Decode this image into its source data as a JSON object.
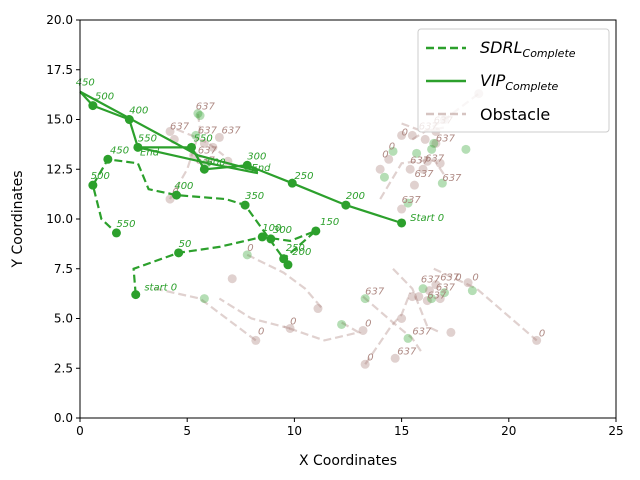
{
  "chart_data": {
    "type": "line",
    "xlabel": "X Coordinates",
    "ylabel": "Y Coordinates",
    "xlim": [
      0,
      25
    ],
    "ylim": [
      0,
      20
    ],
    "xticks": [
      "0",
      "5",
      "10",
      "15",
      "20",
      "25"
    ],
    "yticks": [
      "0.0",
      "2.5",
      "5.0",
      "7.5",
      "10.0",
      "12.5",
      "15.0",
      "17.5",
      "20.0"
    ],
    "grid": false,
    "legend": "top-right",
    "colors": {
      "agent": "#2ca02c",
      "obstacle": "#a57c76"
    },
    "series": [
      {
        "name": "SDRL",
        "name_sub": "Complete",
        "style": "dashed",
        "points": [
          [
            2.6,
            6.2
          ],
          [
            2.5,
            7.5
          ],
          [
            4.6,
            8.3
          ],
          [
            6.5,
            8.6
          ],
          [
            8.5,
            9.1
          ],
          [
            9.8,
            8.9
          ],
          [
            11.0,
            9.4
          ],
          [
            9.5,
            8.0
          ],
          [
            9.7,
            7.7
          ],
          [
            7.7,
            10.7
          ],
          [
            6.8,
            11.0
          ],
          [
            4.5,
            11.2
          ],
          [
            3.2,
            11.5
          ],
          [
            2.7,
            12.8
          ],
          [
            1.3,
            13.0
          ],
          [
            0.6,
            11.7
          ],
          [
            1.0,
            10.0
          ],
          [
            1.7,
            9.3
          ]
        ],
        "markers": [
          [
            2.6,
            6.2
          ],
          [
            4.6,
            8.3
          ],
          [
            8.5,
            9.1
          ],
          [
            8.9,
            9.0
          ],
          [
            11.0,
            9.4
          ],
          [
            9.5,
            8.0
          ],
          [
            9.7,
            7.7
          ],
          [
            7.7,
            10.7
          ],
          [
            4.5,
            11.2
          ],
          [
            1.3,
            13.0
          ],
          [
            0.6,
            11.7
          ],
          [
            1.7,
            9.3
          ]
        ],
        "labels": [
          {
            "x": 3.0,
            "y": 6.4,
            "text": "start 0"
          },
          {
            "x": 4.6,
            "y": 8.6,
            "text": "50"
          },
          {
            "x": 8.5,
            "y": 9.4,
            "text": "100"
          },
          {
            "x": 11.2,
            "y": 9.7,
            "text": "150"
          },
          {
            "x": 9.9,
            "y": 8.2,
            "text": "200"
          },
          {
            "x": 9.6,
            "y": 8.4,
            "text": "250"
          },
          {
            "x": 9.0,
            "y": 9.3,
            "text": "300"
          },
          {
            "x": 7.7,
            "y": 11.0,
            "text": "350"
          },
          {
            "x": 4.4,
            "y": 11.5,
            "text": "400"
          },
          {
            "x": 1.4,
            "y": 13.3,
            "text": "450"
          },
          {
            "x": 0.5,
            "y": 12.0,
            "text": "500"
          },
          {
            "x": 1.7,
            "y": 9.6,
            "text": "550"
          },
          {
            "x": 2.8,
            "y": 13.2,
            "text": "End"
          }
        ]
      },
      {
        "name": "VIP",
        "name_sub": "Complete",
        "style": "solid",
        "points": [
          [
            15.0,
            9.8
          ],
          [
            12.4,
            10.7
          ],
          [
            9.9,
            11.8
          ],
          [
            7.8,
            12.7
          ],
          [
            5.8,
            12.5
          ],
          [
            5.2,
            13.6
          ],
          [
            2.7,
            13.6
          ],
          [
            2.3,
            15.0
          ],
          [
            0.6,
            15.7
          ],
          [
            0.0,
            16.4
          ]
        ],
        "markers": [
          [
            15.0,
            9.8
          ],
          [
            12.4,
            10.7
          ],
          [
            9.9,
            11.8
          ],
          [
            7.8,
            12.7
          ],
          [
            5.8,
            12.5
          ],
          [
            5.2,
            13.6
          ],
          [
            2.7,
            13.6
          ],
          [
            2.3,
            15.0
          ],
          [
            0.6,
            15.7
          ]
        ],
        "extra_segments": [
          [
            [
              0.0,
              16.4
            ],
            [
              5.5,
              13.2
            ],
            [
              8.3,
              12.4
            ]
          ],
          [
            [
              2.7,
              13.6
            ],
            [
              6.0,
              12.8
            ],
            [
              8.3,
              12.3
            ]
          ]
        ],
        "labels": [
          {
            "x": 15.4,
            "y": 9.9,
            "text": "Start 0"
          },
          {
            "x": 12.4,
            "y": 11.0,
            "text": "200"
          },
          {
            "x": 10.0,
            "y": 12.0,
            "text": "250"
          },
          {
            "x": 7.8,
            "y": 13.0,
            "text": "300"
          },
          {
            "x": 8.0,
            "y": 12.4,
            "text": "End"
          },
          {
            "x": 5.9,
            "y": 12.7,
            "text": "600"
          },
          {
            "x": 5.3,
            "y": 13.9,
            "text": "550"
          },
          {
            "x": 2.7,
            "y": 13.9,
            "text": "550"
          },
          {
            "x": 2.3,
            "y": 15.3,
            "text": "400"
          },
          {
            "x": 0.7,
            "y": 16.0,
            "text": "500"
          },
          {
            "x": -0.2,
            "y": 16.7,
            "text": "450"
          }
        ]
      },
      {
        "name": "Obstacle",
        "style": "dashed",
        "segments": [
          [
            [
              8.2,
              3.9
            ],
            [
              5.6,
              6.0
            ],
            [
              3.5,
              6.5
            ]
          ],
          [
            [
              9.8,
              4.5
            ],
            [
              8.0,
              5.0
            ],
            [
              6.5,
              6.0
            ]
          ],
          [
            [
              7.8,
              8.2
            ],
            [
              9.5,
              7.3
            ],
            [
              10.5,
              6.5
            ],
            [
              11.3,
              5.5
            ]
          ],
          [
            [
              12.2,
              4.8
            ],
            [
              13.0,
              4.3
            ],
            [
              11.4,
              3.9
            ],
            [
              9.5,
              4.6
            ]
          ],
          [
            [
              13.3,
              2.7
            ],
            [
              14.5,
              4.6
            ],
            [
              15.0,
              5.2
            ],
            [
              15.4,
              6.3
            ]
          ],
          [
            [
              14.6,
              7.5
            ],
            [
              15.5,
              6.5
            ],
            [
              16.2,
              4.6
            ],
            [
              16.8,
              4.3
            ]
          ],
          [
            [
              13.2,
              6.1
            ],
            [
              14.6,
              4.8
            ],
            [
              15.5,
              4.0
            ],
            [
              16.0,
              3.2
            ]
          ],
          [
            [
              16.5,
              7.5
            ],
            [
              17.5,
              7.0
            ],
            [
              18.5,
              6.5
            ],
            [
              21.3,
              3.9
            ]
          ],
          [
            [
              15.0,
              14.8
            ],
            [
              16.0,
              14.4
            ],
            [
              17.0,
              14.6
            ]
          ],
          [
            [
              14.0,
              11.0
            ],
            [
              15.0,
              12.8
            ],
            [
              16.5,
              13.0
            ],
            [
              17.0,
              12.2
            ]
          ],
          [
            [
              15.5,
              14.0
            ],
            [
              17.0,
              15.0
            ],
            [
              18.6,
              16.3
            ]
          ],
          [
            [
              4.2,
              11.0
            ],
            [
              5.0,
              12.5
            ],
            [
              5.6,
              14.5
            ],
            [
              5.5,
              15.3
            ]
          ],
          [
            [
              4.5,
              14.5
            ],
            [
              5.2,
              14.2
            ],
            [
              6.0,
              13.8
            ],
            [
              6.7,
              13.2
            ]
          ]
        ],
        "markers": [
          [
            5.5,
            15.3
          ],
          [
            4.2,
            14.4
          ],
          [
            4.4,
            14.0
          ],
          [
            5.4,
            14.2
          ],
          [
            5.8,
            13.8
          ],
          [
            5.3,
            13.2
          ],
          [
            5.9,
            12.8
          ],
          [
            6.2,
            13.6
          ],
          [
            6.5,
            14.1
          ],
          [
            5.6,
            15.2
          ],
          [
            4.2,
            11.0
          ],
          [
            6.9,
            12.9
          ],
          [
            7.8,
            8.2
          ],
          [
            8.2,
            3.9
          ],
          [
            9.8,
            4.5
          ],
          [
            5.8,
            6.0
          ],
          [
            7.1,
            7.0
          ],
          [
            11.1,
            5.5
          ],
          [
            12.2,
            4.7
          ],
          [
            13.2,
            4.4
          ],
          [
            13.3,
            2.7
          ],
          [
            13.3,
            6.0
          ],
          [
            14.7,
            3.0
          ],
          [
            15.0,
            5.0
          ],
          [
            15.3,
            4.0
          ],
          [
            15.5,
            6.1
          ],
          [
            15.8,
            6.1
          ],
          [
            16.0,
            6.5
          ],
          [
            16.2,
            5.9
          ],
          [
            16.3,
            6.4
          ],
          [
            16.4,
            6.0
          ],
          [
            16.6,
            6.7
          ],
          [
            16.8,
            6.0
          ],
          [
            17.0,
            6.3
          ],
          [
            17.3,
            4.3
          ],
          [
            18.1,
            6.8
          ],
          [
            18.3,
            6.4
          ],
          [
            21.3,
            3.9
          ],
          [
            15.0,
            10.5
          ],
          [
            15.3,
            10.8
          ],
          [
            15.6,
            11.7
          ],
          [
            15.4,
            12.5
          ],
          [
            14.2,
            12.1
          ],
          [
            14.4,
            13.0
          ],
          [
            14.0,
            12.5
          ],
          [
            14.6,
            13.4
          ],
          [
            15.0,
            14.2
          ],
          [
            15.5,
            14.2
          ],
          [
            15.7,
            13.3
          ],
          [
            16.0,
            12.5
          ],
          [
            16.2,
            12.9
          ],
          [
            16.4,
            13.5
          ],
          [
            16.6,
            13.8
          ],
          [
            16.8,
            12.8
          ],
          [
            16.9,
            11.8
          ],
          [
            16.6,
            14.4
          ],
          [
            17.0,
            15.0
          ],
          [
            18.0,
            13.5
          ],
          [
            18.6,
            16.3
          ],
          [
            16.1,
            14.0
          ],
          [
            16.5,
            13.8
          ]
        ],
        "labels": [
          {
            "x": 5.4,
            "y": 15.5,
            "text": "637"
          },
          {
            "x": 4.2,
            "y": 14.5,
            "text": "637"
          },
          {
            "x": 5.5,
            "y": 14.3,
            "text": "637"
          },
          {
            "x": 6.6,
            "y": 14.3,
            "text": "637"
          },
          {
            "x": 5.5,
            "y": 13.3,
            "text": "637"
          },
          {
            "x": 5.4,
            "y": 12.8,
            "text": "637"
          },
          {
            "x": 4.3,
            "y": 11.2,
            "text": "0"
          },
          {
            "x": 7.8,
            "y": 8.4,
            "text": "0"
          },
          {
            "x": 8.3,
            "y": 4.2,
            "text": "0"
          },
          {
            "x": 9.8,
            "y": 4.7,
            "text": "0"
          },
          {
            "x": 13.3,
            "y": 6.2,
            "text": "637"
          },
          {
            "x": 13.3,
            "y": 4.6,
            "text": "0"
          },
          {
            "x": 13.4,
            "y": 2.9,
            "text": "0"
          },
          {
            "x": 14.8,
            "y": 3.2,
            "text": "637"
          },
          {
            "x": 15.5,
            "y": 4.2,
            "text": "637"
          },
          {
            "x": 15.9,
            "y": 6.8,
            "text": "637"
          },
          {
            "x": 16.2,
            "y": 6.0,
            "text": "637"
          },
          {
            "x": 16.6,
            "y": 6.4,
            "text": "637"
          },
          {
            "x": 16.8,
            "y": 6.9,
            "text": "637"
          },
          {
            "x": 17.5,
            "y": 6.9,
            "text": "0"
          },
          {
            "x": 18.3,
            "y": 6.9,
            "text": "0"
          },
          {
            "x": 21.4,
            "y": 4.1,
            "text": "0"
          },
          {
            "x": 15.0,
            "y": 10.8,
            "text": "637"
          },
          {
            "x": 15.6,
            "y": 12.1,
            "text": "637"
          },
          {
            "x": 15.4,
            "y": 12.8,
            "text": "637"
          },
          {
            "x": 14.1,
            "y": 13.1,
            "text": "0"
          },
          {
            "x": 14.4,
            "y": 13.5,
            "text": "0"
          },
          {
            "x": 15.0,
            "y": 14.2,
            "text": "0"
          },
          {
            "x": 15.8,
            "y": 14.5,
            "text": "637"
          },
          {
            "x": 16.1,
            "y": 12.9,
            "text": "637"
          },
          {
            "x": 16.6,
            "y": 13.9,
            "text": "637"
          },
          {
            "x": 16.9,
            "y": 11.9,
            "text": "637"
          },
          {
            "x": 16.5,
            "y": 14.8,
            "text": "637"
          }
        ]
      }
    ]
  }
}
